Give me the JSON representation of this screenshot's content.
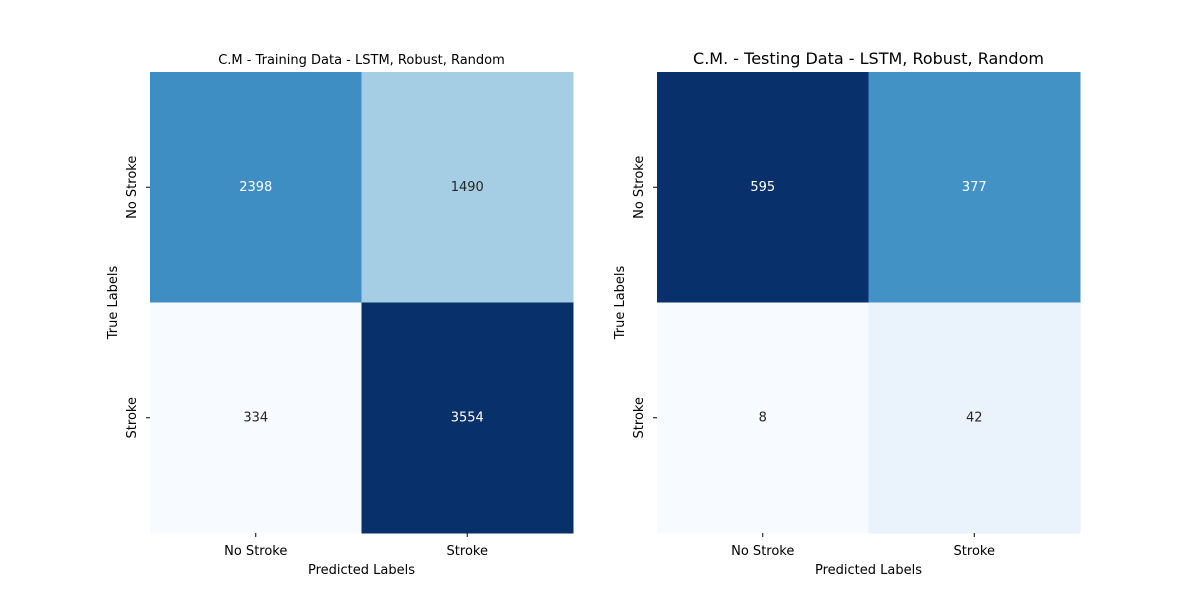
{
  "chart_data": [
    {
      "type": "heatmap",
      "title": "C.M - Training Data - LSTM, Robust, Random",
      "xlabel": "Predicted Labels",
      "ylabel": "True Labels",
      "x_tick_labels": [
        "No Stroke",
        "Stroke"
      ],
      "y_tick_labels": [
        "No Stroke",
        "Stroke"
      ],
      "values": [
        [
          2398,
          1490
        ],
        [
          334,
          3554
        ]
      ],
      "colormap": "Blues",
      "colorbar": false,
      "cell_colors": [
        [
          "#3e8ec4",
          "#a5cde3"
        ],
        [
          "#f7fbff",
          "#08306b"
        ]
      ],
      "text_colors": [
        [
          "#ffffff",
          "#262626"
        ],
        [
          "#262626",
          "#ffffff"
        ]
      ]
    },
    {
      "type": "heatmap",
      "title": "C.M. - Testing Data - LSTM, Robust, Random",
      "xlabel": "Predicted Labels",
      "ylabel": "True Labels",
      "x_tick_labels": [
        "No Stroke",
        "Stroke"
      ],
      "y_tick_labels": [
        "No Stroke",
        "Stroke"
      ],
      "values": [
        [
          595,
          377
        ],
        [
          8,
          42
        ]
      ],
      "colormap": "Blues",
      "colorbar": false,
      "cell_colors": [
        [
          "#08306b",
          "#4292c6"
        ],
        [
          "#f7fbff",
          "#eaf2fb"
        ]
      ],
      "text_colors": [
        [
          "#ffffff",
          "#ffffff"
        ],
        [
          "#262626",
          "#262626"
        ]
      ]
    }
  ]
}
